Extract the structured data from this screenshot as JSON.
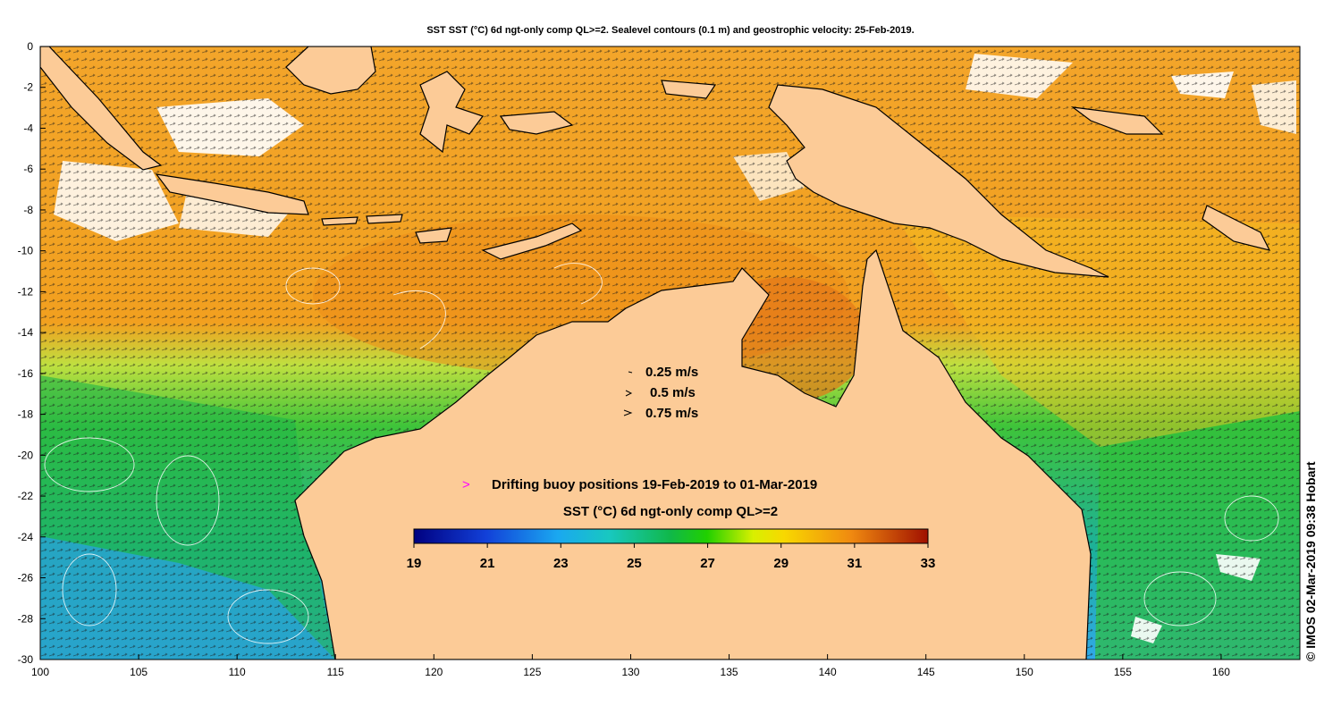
{
  "title": "SST SST (°C) 6d ngt-only comp QL>=2. Sealevel contours (0.1 m) and geostrophic velocity: 25-Feb-2019.",
  "credit": "© IMOS 02-Mar-2019 09:38 Hobart",
  "axes": {
    "x_ticks": [
      "100",
      "105",
      "110",
      "115",
      "120",
      "125",
      "130",
      "135",
      "140",
      "145",
      "150",
      "155",
      "160"
    ],
    "y_ticks": [
      "0",
      "-2",
      "-4",
      "-6",
      "-8",
      "-10",
      "-12",
      "-14",
      "-16",
      "-18",
      "-20",
      "-22",
      "-24",
      "-26",
      "-28",
      "-30"
    ],
    "lon_range": [
      100,
      164
    ],
    "lat_range": [
      -30,
      0
    ]
  },
  "velocity_legend": [
    {
      "label": "0.25 m/s"
    },
    {
      "label": "0.5 m/s"
    },
    {
      "label": "0.75 m/s"
    }
  ],
  "buoy_legend": {
    "marker": ">",
    "label": "Drifting buoy positions 19-Feb-2019 to 01-Mar-2019",
    "color": "#ff00ff"
  },
  "colorbar": {
    "title": "SST (°C) 6d ngt-only comp QL>=2",
    "ticks": [
      "19",
      "21",
      "23",
      "25",
      "27",
      "29",
      "31",
      "33"
    ],
    "range": [
      19,
      33
    ]
  },
  "colors": {
    "land": "#fccb97",
    "cloud": "#ffffff",
    "contour": "#ffffff",
    "coastline": "#000000"
  }
}
